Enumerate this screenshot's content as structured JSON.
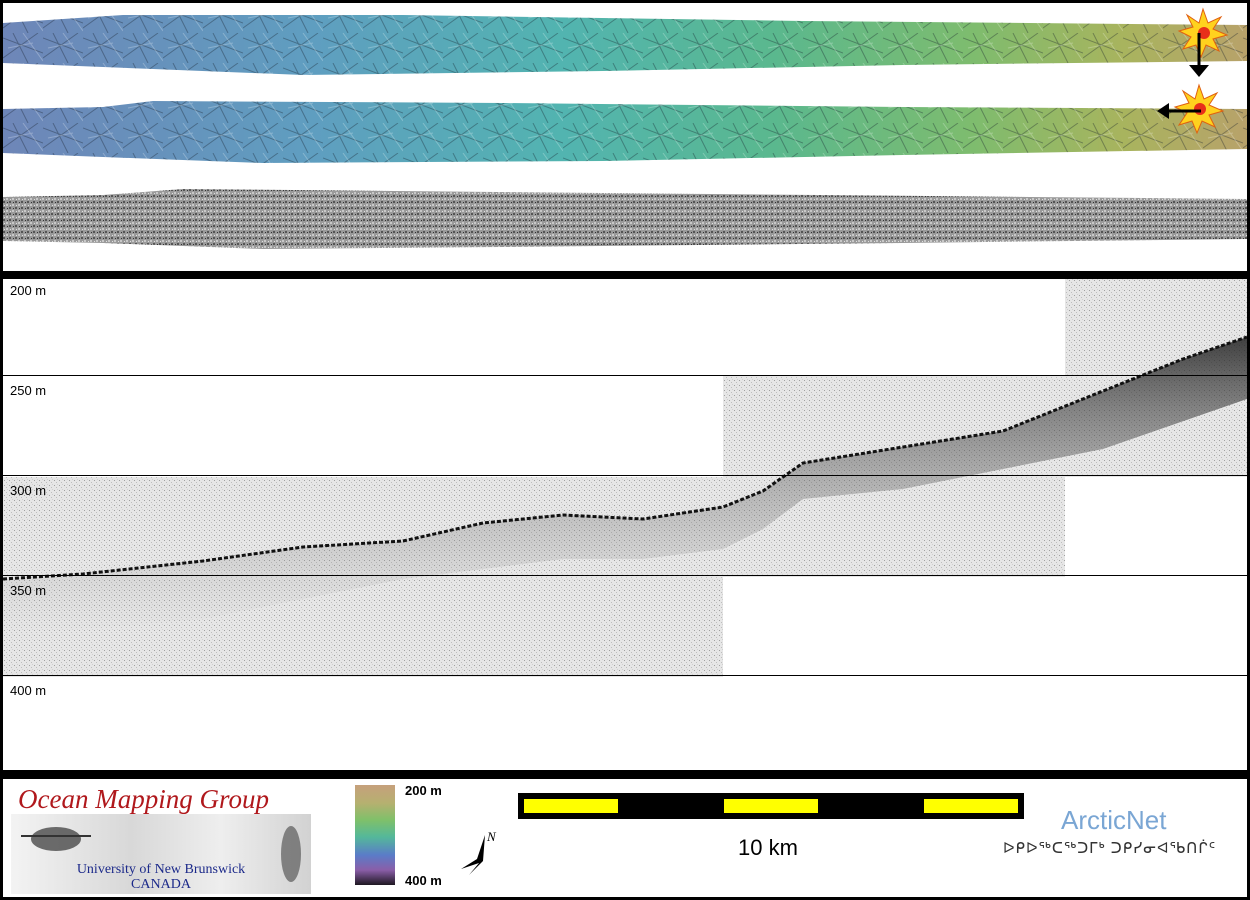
{
  "profile": {
    "depth_labels": [
      "200 m",
      "250 m",
      "300 m",
      "350 m",
      "400 m"
    ]
  },
  "legend": {
    "logo_title": "Ocean Mapping Group",
    "logo_sub1": "University of New Brunswick",
    "logo_sub2": "CANADA",
    "colorbar_top": "200 m",
    "colorbar_bottom": "400 m",
    "north_label": "N",
    "scale_label": "10 km",
    "partner_title": "ArcticNet",
    "partner_sub": "ᐅᑭᐅᖅᑕᖅᑐᒥᒃ ᑐᑭᓯᓂᐊᖃᑎᒌᑦ"
  }
}
